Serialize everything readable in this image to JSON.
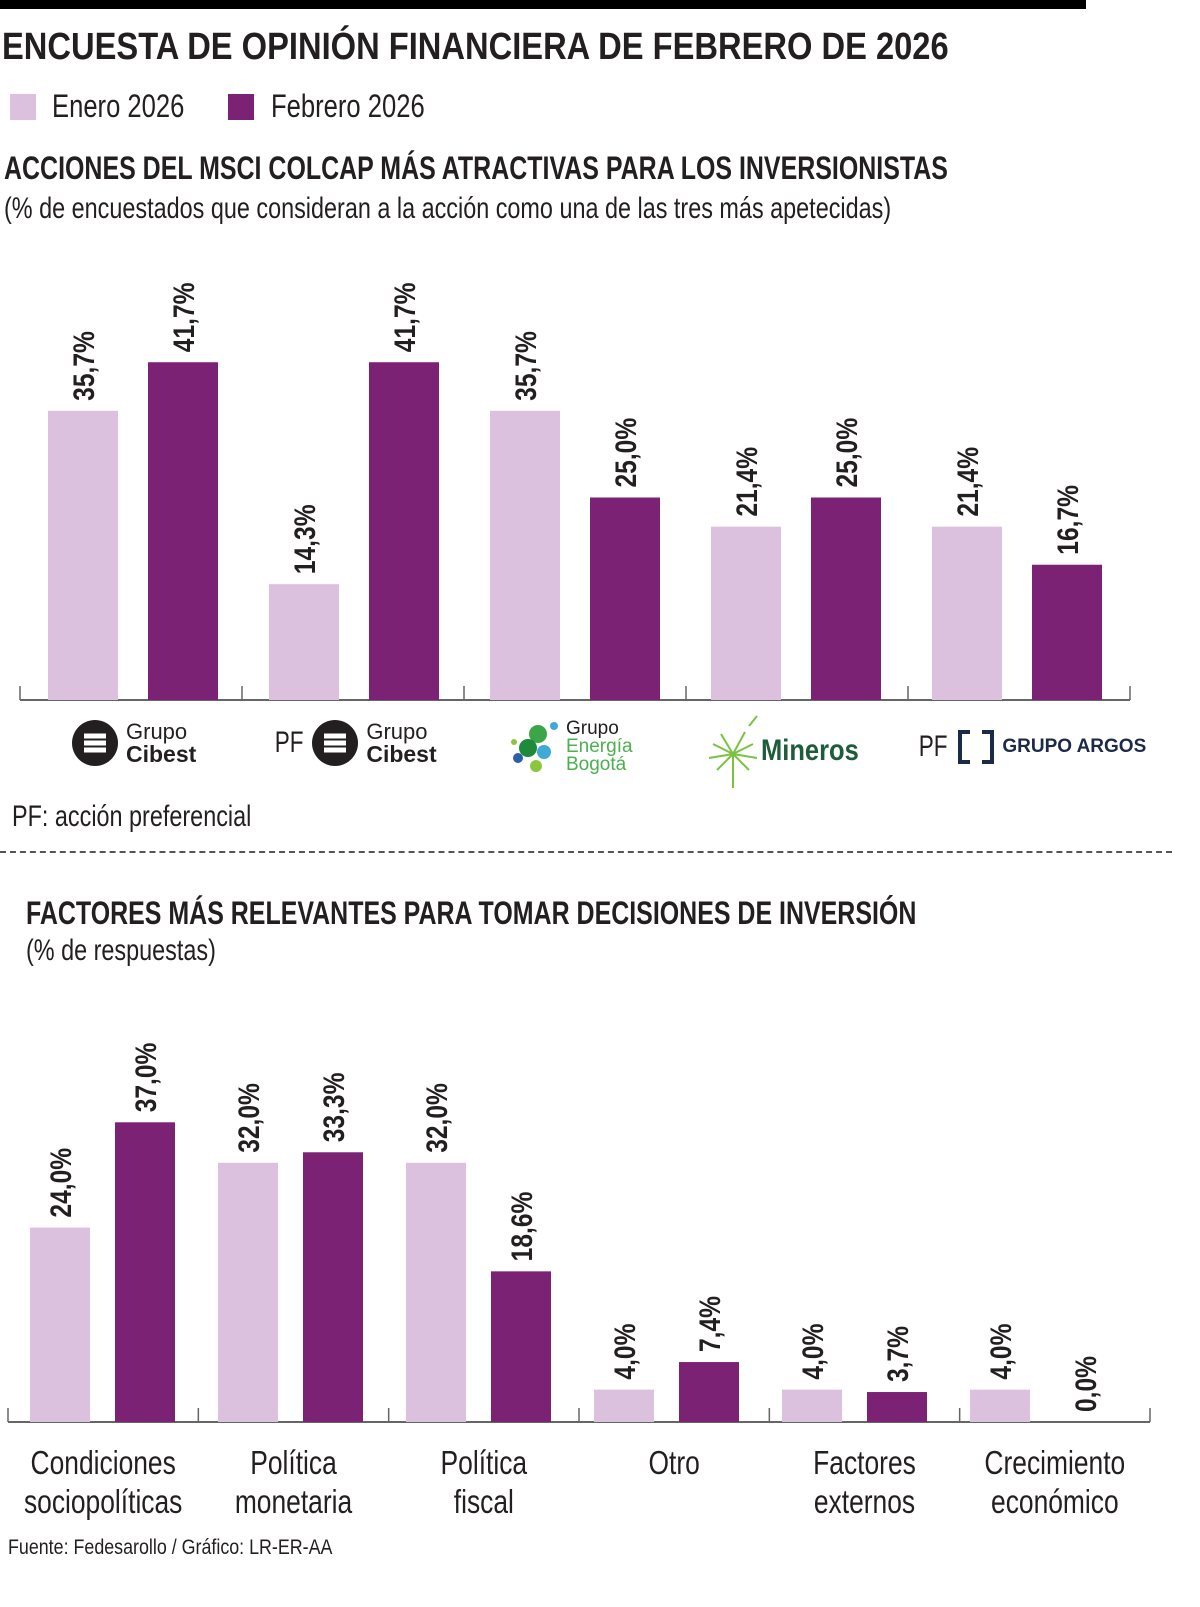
{
  "title": "ENCUESTA DE OPINIÓN FINANCIERA DE FEBRERO DE 2026",
  "legend": [
    {
      "label": "Enero 2026",
      "color": "#dcc1de"
    },
    {
      "label": "Febrero 2026",
      "color": "#7b2275"
    }
  ],
  "chart_data": [
    {
      "type": "bar",
      "title": "ACCIONES DEL MSCI COLCAP MÁS ATRACTIVAS PARA LOS INVERSIONISTAS",
      "subtitle": "(% de encuestados que consideran a la acción como una de las tres más apetecidas)",
      "categories": [
        "Grupo Cibest",
        "PF Grupo Cibest",
        "Grupo Energía Bogotá",
        "Mineros",
        "PF Grupo Argos"
      ],
      "series": [
        {
          "name": "Enero 2026",
          "values": [
            35.7,
            14.3,
            35.7,
            21.4,
            21.4
          ],
          "labels": [
            "35,7%",
            "14,3%",
            "35,7%",
            "21,4%",
            "21,4%"
          ]
        },
        {
          "name": "Febrero 2026",
          "values": [
            41.7,
            41.7,
            25.0,
            25.0,
            16.7
          ],
          "labels": [
            "41,7%",
            "41,7%",
            "25,0%",
            "25,0%",
            "16,7%"
          ]
        }
      ],
      "note": "PF: acción preferencial"
    },
    {
      "type": "bar",
      "title": "FACTORES MÁS RELEVANTES PARA TOMAR DECISIONES DE INVERSIÓN",
      "subtitle": "(% de respuestas)",
      "categories": [
        [
          "Condiciones",
          "sociopolíticas"
        ],
        [
          "Política",
          "monetaria"
        ],
        [
          "Política",
          "fiscal"
        ],
        [
          "Otro",
          ""
        ],
        [
          "Factores",
          "externos"
        ],
        [
          "Crecimiento",
          "económico"
        ]
      ],
      "series": [
        {
          "name": "Enero 2026",
          "values": [
            24.0,
            32.0,
            32.0,
            4.0,
            4.0,
            4.0
          ],
          "labels": [
            "24,0%",
            "32,0%",
            "32,0%",
            "4,0%",
            "4,0%",
            "4,0%"
          ]
        },
        {
          "name": "Febrero 2026",
          "values": [
            37.0,
            33.3,
            18.6,
            7.4,
            3.7,
            0.0
          ],
          "labels": [
            "37,0%",
            "33,3%",
            "18,6%",
            "7,4%",
            "3,7%",
            "0,0%"
          ]
        }
      ]
    }
  ],
  "logos": {
    "pf": "PF",
    "grupo": "Grupo",
    "cibest": "Cibest",
    "energia": "Energía",
    "bogota": "Bogotá",
    "mineros": "Mineros",
    "argos": "GRUPO ARGOS"
  },
  "source": "Fuente: Fedesarollo / Gráfico: LR-ER-AA"
}
